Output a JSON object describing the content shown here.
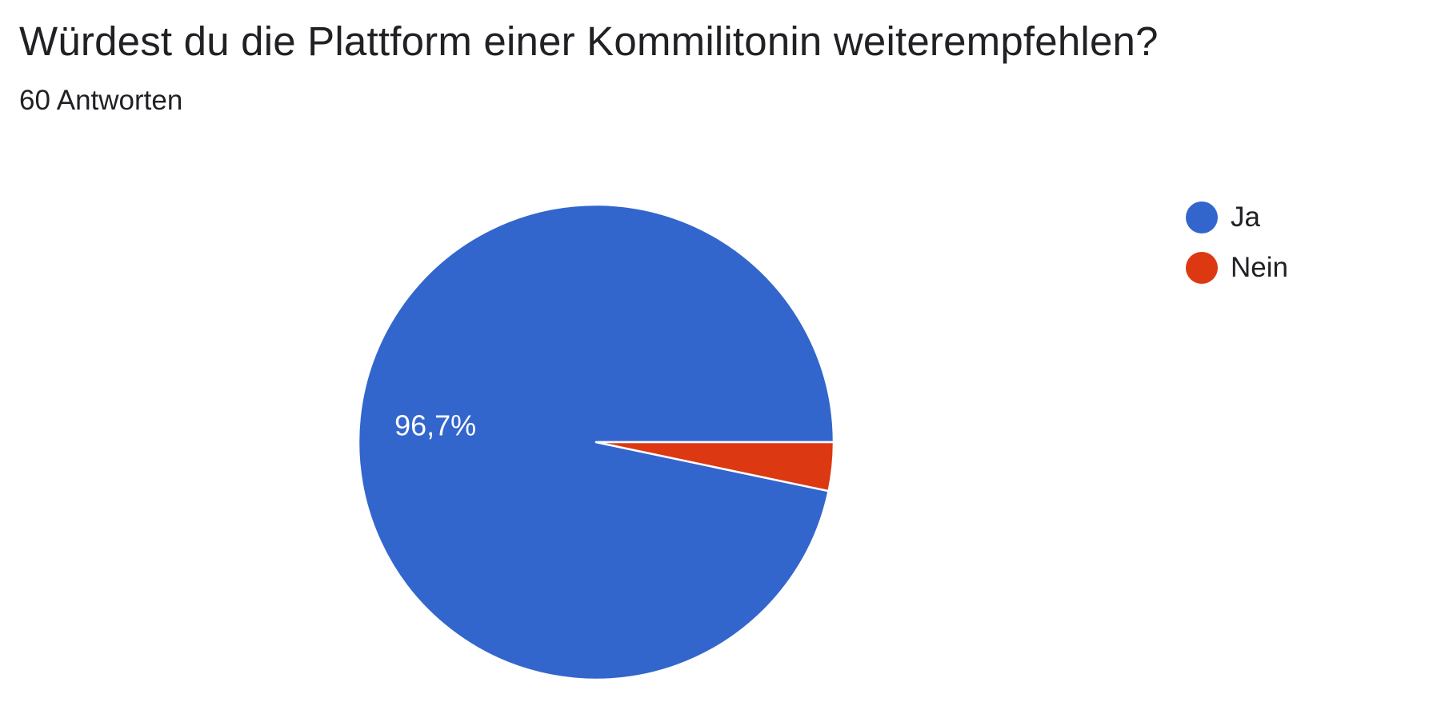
{
  "chart_data": {
    "type": "pie",
    "title": "Würdest du die Plattform einer Kommilitonin weiterempfehlen?",
    "subtitle": "60 Antworten",
    "slices": [
      {
        "label": "Ja",
        "value": 96.7,
        "display": "96,7%",
        "color": "#3366cc"
      },
      {
        "label": "Nein",
        "value": 3.3,
        "display": "",
        "color": "#dc3912"
      }
    ],
    "legend_position": "right"
  }
}
